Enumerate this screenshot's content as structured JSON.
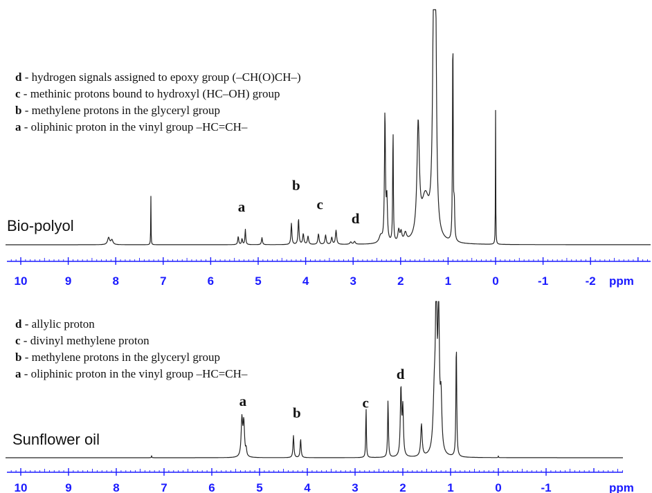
{
  "colors": {
    "axis": "#1a1aff",
    "trace": "#222222",
    "text": "#111111"
  },
  "chart_data": [
    {
      "type": "line",
      "sample_label": "Bio-polyol",
      "xlabel": "ppm",
      "x_reversed": true,
      "xlim": [
        10.3,
        -2.7
      ],
      "ylim": [
        0,
        1
      ],
      "x_ticks": [
        10,
        9,
        8,
        7,
        6,
        5,
        4,
        3,
        2,
        1,
        0,
        -1,
        -2
      ],
      "x_tick_labels": [
        "10",
        "9",
        "8",
        "7",
        "6",
        "5",
        "4",
        "3",
        "2",
        "1",
        "0",
        "-1",
        "-2"
      ],
      "legend": [
        {
          "key": "d",
          "text": " - hydrogen signals assigned to epoxy group (–CH(O)CH–)"
        },
        {
          "key": "c",
          "text": " - methinic protons bound to hydroxyl (HC–OH) group"
        },
        {
          "key": "b",
          "text": " - methylene protons in the glyceryl group"
        },
        {
          "key": "a",
          "text": " - oliphinic proton in the vinyl group –HC=CH–"
        }
      ],
      "annotations": [
        {
          "label": "a",
          "x": 5.35,
          "y": 0.13
        },
        {
          "label": "b",
          "x": 4.2,
          "y": 0.22
        },
        {
          "label": "c",
          "x": 3.7,
          "y": 0.14
        },
        {
          "label": "d",
          "x": 2.95,
          "y": 0.08
        }
      ],
      "peaks": [
        {
          "x": 8.15,
          "h": 0.03,
          "w": 0.025
        },
        {
          "x": 8.08,
          "h": 0.02,
          "w": 0.025
        },
        {
          "x": 7.26,
          "h": 0.21,
          "w": 0.004
        },
        {
          "x": 5.42,
          "h": 0.035,
          "w": 0.012
        },
        {
          "x": 5.34,
          "h": 0.025,
          "w": 0.012
        },
        {
          "x": 5.27,
          "h": 0.065,
          "w": 0.01
        },
        {
          "x": 4.92,
          "h": 0.03,
          "w": 0.012
        },
        {
          "x": 4.3,
          "h": 0.09,
          "w": 0.012
        },
        {
          "x": 4.15,
          "h": 0.11,
          "w": 0.012
        },
        {
          "x": 4.05,
          "h": 0.045,
          "w": 0.015
        },
        {
          "x": 3.95,
          "h": 0.035,
          "w": 0.015
        },
        {
          "x": 3.73,
          "h": 0.045,
          "w": 0.015
        },
        {
          "x": 3.58,
          "h": 0.04,
          "w": 0.015
        },
        {
          "x": 3.45,
          "h": 0.03,
          "w": 0.015
        },
        {
          "x": 3.36,
          "h": 0.06,
          "w": 0.015
        },
        {
          "x": 3.05,
          "h": 0.01,
          "w": 0.02
        },
        {
          "x": 2.97,
          "h": 0.012,
          "w": 0.02
        },
        {
          "x": 2.42,
          "h": 0.03,
          "w": 0.04
        },
        {
          "x": 2.33,
          "h": 0.55,
          "w": 0.012
        },
        {
          "x": 2.29,
          "h": 0.18,
          "w": 0.015
        },
        {
          "x": 2.16,
          "h": 0.5,
          "w": 0.008
        },
        {
          "x": 2.04,
          "h": 0.05,
          "w": 0.02
        },
        {
          "x": 1.99,
          "h": 0.04,
          "w": 0.02
        },
        {
          "x": 1.9,
          "h": 0.035,
          "w": 0.03
        },
        {
          "x": 1.63,
          "h": 0.47,
          "w": 0.03
        },
        {
          "x": 1.48,
          "h": 0.18,
          "w": 0.1
        },
        {
          "x": 1.3,
          "h": 1.1,
          "w": 0.028
        },
        {
          "x": 1.26,
          "h": 0.7,
          "w": 0.02
        },
        {
          "x": 0.9,
          "h": 0.93,
          "w": 0.008
        },
        {
          "x": 0.87,
          "h": 0.15,
          "w": 0.01
        },
        {
          "x": 0.0,
          "h": 0.57,
          "w": 0.004
        }
      ]
    },
    {
      "type": "line",
      "sample_label": "Sunflower oil",
      "xlabel": "ppm",
      "x_reversed": true,
      "xlim": [
        10.3,
        -1.85
      ],
      "ylim": [
        0,
        1
      ],
      "x_ticks": [
        10,
        9,
        8,
        7,
        6,
        5,
        4,
        3,
        2,
        1,
        0,
        -1
      ],
      "x_tick_labels": [
        "10",
        "9",
        "8",
        "7",
        "6",
        "5",
        "4",
        "3",
        "2",
        "1",
        "0",
        "-1"
      ],
      "legend": [
        {
          "key": "d",
          "text": " - allylic proton"
        },
        {
          "key": "c",
          "text": " - divinyl methylene proton"
        },
        {
          "key": "b",
          "text": " - methylene protons in the glyceryl group"
        },
        {
          "key": "a",
          "text": " - oliphinic proton in the vinyl group –HC=CH–"
        }
      ],
      "annotations": [
        {
          "label": "a",
          "x": 5.35,
          "y": 0.29
        },
        {
          "label": "b",
          "x": 4.22,
          "y": 0.22
        },
        {
          "label": "c",
          "x": 2.78,
          "y": 0.28
        },
        {
          "label": "d",
          "x": 2.05,
          "y": 0.45
        }
      ],
      "peaks": [
        {
          "x": 7.26,
          "h": 0.012,
          "w": 0.005
        },
        {
          "x": 5.37,
          "h": 0.22,
          "w": 0.018
        },
        {
          "x": 5.33,
          "h": 0.2,
          "w": 0.018
        },
        {
          "x": 5.28,
          "h": 0.04,
          "w": 0.012
        },
        {
          "x": 4.29,
          "h": 0.13,
          "w": 0.012
        },
        {
          "x": 4.14,
          "h": 0.11,
          "w": 0.012
        },
        {
          "x": 2.77,
          "h": 0.3,
          "w": 0.008
        },
        {
          "x": 2.31,
          "h": 0.34,
          "w": 0.01
        },
        {
          "x": 2.04,
          "h": 0.4,
          "w": 0.015
        },
        {
          "x": 2.0,
          "h": 0.28,
          "w": 0.015
        },
        {
          "x": 1.61,
          "h": 0.19,
          "w": 0.018
        },
        {
          "x": 1.34,
          "h": 0.32,
          "w": 0.03
        },
        {
          "x": 1.3,
          "h": 0.98,
          "w": 0.018
        },
        {
          "x": 1.25,
          "h": 0.85,
          "w": 0.018
        },
        {
          "x": 1.2,
          "h": 0.3,
          "w": 0.02
        },
        {
          "x": 0.88,
          "h": 0.68,
          "w": 0.01
        },
        {
          "x": 0.0,
          "h": 0.01,
          "w": 0.005
        }
      ]
    }
  ]
}
